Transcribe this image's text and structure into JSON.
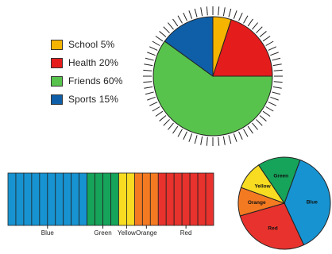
{
  "colors": {
    "school": "#f5b400",
    "health": "#e41c1c",
    "friends": "#58c34c",
    "sports": "#0f5fa8",
    "blue": "#1793d1",
    "green": "#16a35a",
    "yellow": "#f7dc22",
    "orange": "#f47a22",
    "red": "#e8322d"
  },
  "legend": [
    {
      "label": "School 5%",
      "color": "#f5b400"
    },
    {
      "label": "Health 20%",
      "color": "#e41c1c"
    },
    {
      "label": "Friends 60%",
      "color": "#58c34c"
    },
    {
      "label": "Sports 15%",
      "color": "#0f5fa8"
    }
  ],
  "chart_data": [
    {
      "type": "pie",
      "categories": [
        "School",
        "Health",
        "Friends",
        "Sports"
      ],
      "values": [
        5,
        20,
        60,
        15
      ],
      "tick_count": 72
    },
    {
      "type": "bar",
      "segments": [
        {
          "label": "Blue",
          "count": 10,
          "color": "#1793d1"
        },
        {
          "label": "Green",
          "count": 4,
          "color": "#16a35a"
        },
        {
          "label": "Yellow",
          "count": 2,
          "color": "#f7dc22"
        },
        {
          "label": "Orange",
          "count": 3,
          "color": "#f47a22"
        },
        {
          "label": "Red",
          "count": 7,
          "color": "#e8322d"
        }
      ]
    },
    {
      "type": "pie",
      "categories": [
        "Blue",
        "Red",
        "Orange",
        "Yellow",
        "Green"
      ],
      "values": [
        37.5,
        27.5,
        10,
        10,
        15
      ]
    }
  ]
}
